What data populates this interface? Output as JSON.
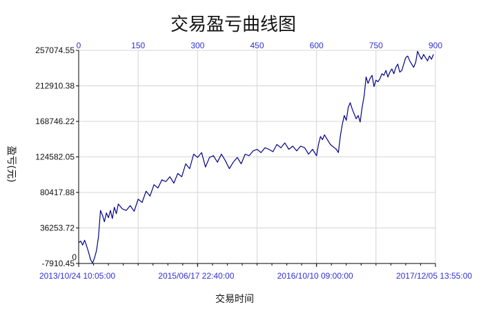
{
  "chart_data": {
    "type": "line",
    "title": "交易盈亏曲线图",
    "xlabel": "交易时间",
    "ylabel": "盈亏(元)",
    "grid": true,
    "legend": "none",
    "series_color": "#00008b",
    "ylim": [
      -7910.45,
      257074.55
    ],
    "y_ticks": [
      "257074.55",
      "212910.38",
      "168746.22",
      "124582.05",
      "80417.88",
      "36253.72",
      "-7910.45"
    ],
    "y_zero_label": "0",
    "top_axis": {
      "range": [
        0,
        900
      ],
      "ticks": [
        "0",
        "150",
        "300",
        "450",
        "600",
        "750",
        "900"
      ]
    },
    "bottom_axis": {
      "ticks": [
        "2013/10/24 10:05:00",
        "2015/06/17 22:40:00",
        "2016/10/10 09:00:00",
        "2017/12/05 13:55:00"
      ]
    },
    "series": [
      {
        "x": [
          0,
          5,
          10,
          15,
          20,
          25,
          30,
          35,
          40,
          45,
          50,
          55,
          60,
          65,
          70,
          75,
          80,
          85,
          90,
          95,
          100,
          110,
          120,
          130,
          140,
          150,
          160,
          170,
          180,
          190,
          200,
          210,
          220,
          230,
          240,
          250,
          260,
          270,
          280,
          290,
          300,
          310,
          320,
          330,
          340,
          350,
          360,
          370,
          380,
          390,
          400,
          410,
          420,
          430,
          440,
          450,
          460,
          470,
          480,
          490,
          500,
          510,
          520,
          530,
          540,
          550,
          560,
          570,
          580,
          590,
          600,
          605,
          610,
          615,
          620,
          625,
          630,
          635,
          640,
          645,
          650,
          655,
          660,
          665,
          670,
          675,
          680,
          685,
          690,
          695,
          700,
          705,
          710,
          715,
          720,
          725,
          730,
          735,
          740,
          745,
          750,
          755,
          760,
          765,
          770,
          775,
          780,
          785,
          790,
          795,
          800,
          805,
          810,
          815,
          820,
          825,
          830,
          835,
          840,
          845,
          850,
          855,
          860,
          865,
          870,
          875,
          880,
          885,
          890,
          895
        ],
        "y": [
          18000,
          20000,
          15000,
          21000,
          14000,
          6000,
          -3000,
          -7500,
          -1000,
          8000,
          25000,
          58000,
          52000,
          44000,
          55000,
          49000,
          58000,
          48000,
          62000,
          54000,
          66000,
          60000,
          58000,
          64000,
          57000,
          72000,
          68000,
          82000,
          76000,
          90000,
          86000,
          96000,
          94000,
          100000,
          92000,
          104000,
          100000,
          116000,
          110000,
          128000,
          124000,
          130000,
          112000,
          124000,
          126000,
          118000,
          128000,
          120000,
          110000,
          118000,
          124000,
          116000,
          128000,
          126000,
          132000,
          134000,
          130000,
          136000,
          134000,
          131000,
          140000,
          136000,
          142000,
          134000,
          138000,
          132000,
          138000,
          136000,
          128000,
          134000,
          126000,
          140000,
          150000,
          146000,
          152000,
          148000,
          144000,
          140000,
          138000,
          136000,
          134000,
          130000,
          150000,
          165000,
          176000,
          170000,
          186000,
          192000,
          184000,
          178000,
          172000,
          176000,
          168000,
          186000,
          200000,
          224000,
          216000,
          222000,
          226000,
          212000,
          220000,
          218000,
          222000,
          228000,
          226000,
          232000,
          224000,
          230000,
          234000,
          228000,
          236000,
          240000,
          230000,
          232000,
          240000,
          248000,
          250000,
          244000,
          240000,
          236000,
          242000,
          256000,
          250000,
          246000,
          252000,
          248000,
          244000,
          250000,
          246000,
          252000
        ]
      }
    ]
  }
}
